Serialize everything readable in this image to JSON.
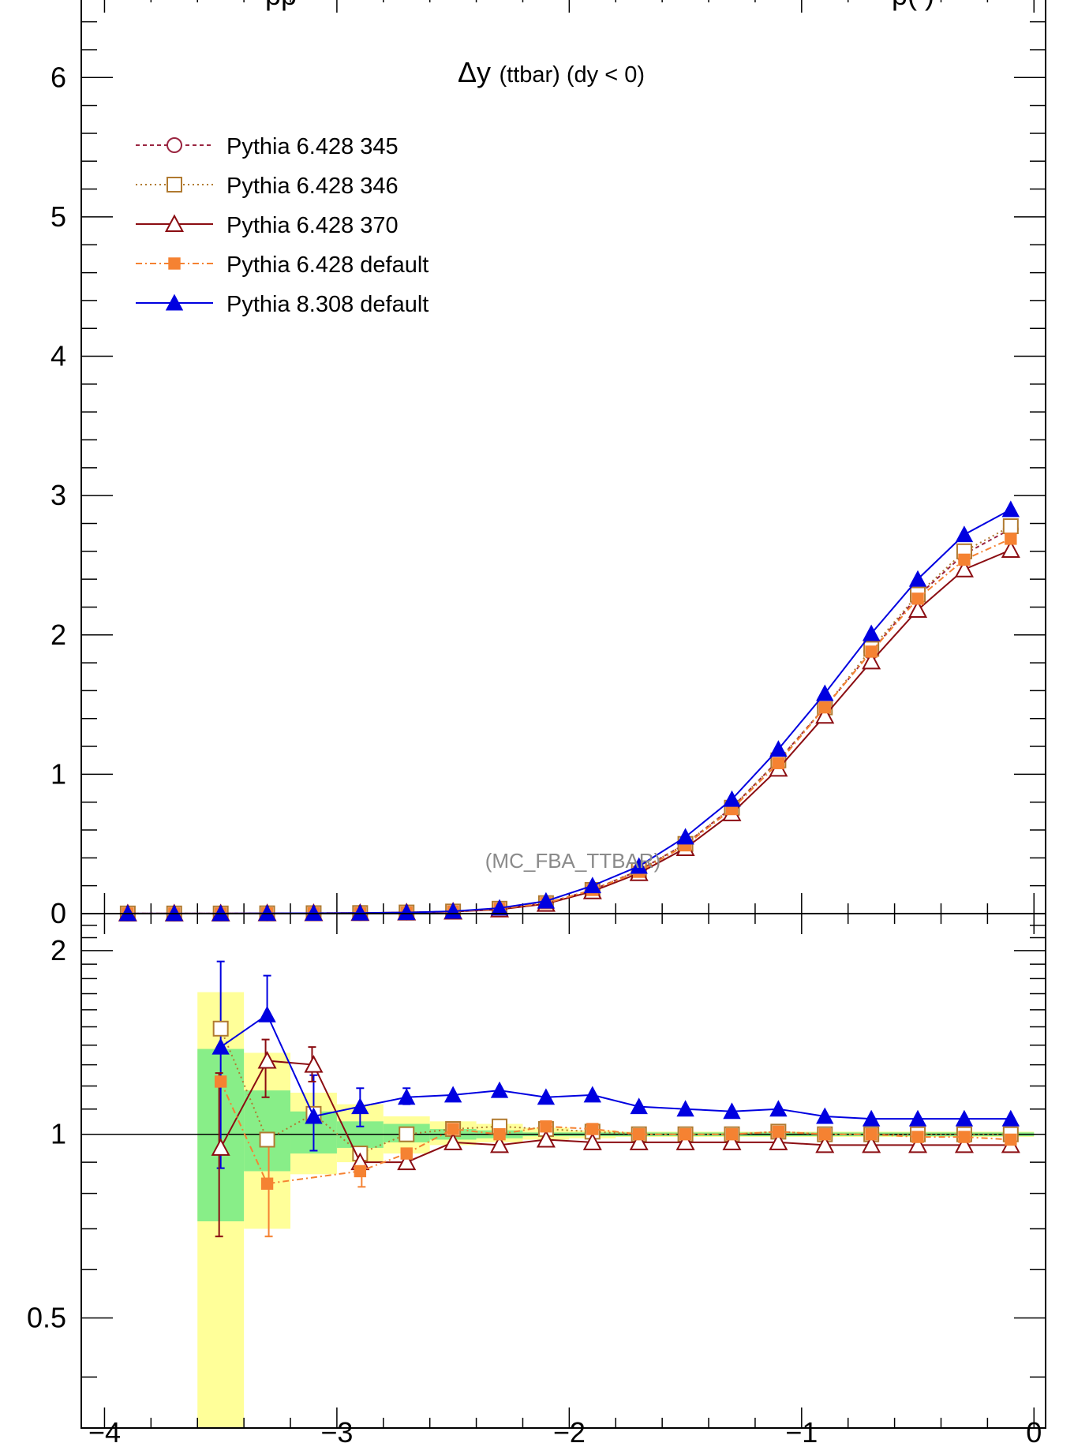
{
  "chart_data": {
    "type": "line",
    "title_fragment": "pp",
    "title_fragment_right": "p(                )",
    "panel_label_symbol": "Δy",
    "panel_label_text": "(ttbar) (dy < 0)",
    "watermark": "(MC_FBA_TTBAR)",
    "x": [
      -3.9,
      -3.7,
      -3.5,
      -3.3,
      -3.1,
      -2.9,
      -2.7,
      -2.5,
      -2.3,
      -2.1,
      -1.9,
      -1.7,
      -1.5,
      -1.3,
      -1.1,
      -0.9,
      -0.7,
      -0.5,
      -0.3,
      -0.1
    ],
    "xlim": [
      -4.1,
      0.05
    ],
    "main_ylim": [
      0,
      6.5
    ],
    "ratio_ylim": [
      0.33,
      2.3
    ],
    "main_yticks": [
      "0",
      "1",
      "2",
      "3",
      "4",
      "5",
      "6"
    ],
    "ratio_yticks": [
      "0.5",
      "1",
      "2"
    ],
    "xticks": [
      "−4",
      "−3",
      "−2",
      "−1",
      "0"
    ],
    "legend_position": "top-left",
    "series": [
      {
        "name": "Pythia 6.428 345",
        "color": "#9a2540",
        "dash": "5,4",
        "marker": "open-circle",
        "values": [
          0.001,
          0.001,
          0.001,
          0.002,
          0.003,
          0.004,
          0.008,
          0.015,
          0.035,
          0.075,
          0.17,
          0.31,
          0.5,
          0.76,
          1.1,
          1.48,
          1.88,
          2.28,
          2.58,
          2.76
        ],
        "ratio": [
          null,
          null,
          null,
          null,
          null,
          null,
          null,
          null,
          null,
          null,
          null,
          null,
          null,
          null,
          null,
          null,
          null,
          null,
          null,
          null
        ]
      },
      {
        "name": "Pythia 6.428 346",
        "color": "#b07a30",
        "dash": "2,4",
        "marker": "open-square",
        "values": [
          0.001,
          0.001,
          0.001,
          0.002,
          0.003,
          0.004,
          0.008,
          0.015,
          0.035,
          0.075,
          0.17,
          0.31,
          0.5,
          0.76,
          1.1,
          1.48,
          1.9,
          2.29,
          2.6,
          2.78
        ],
        "ratio": [
          null,
          null,
          1.49,
          0.98,
          1.08,
          0.93,
          1.0,
          1.02,
          1.03,
          1.02,
          1.01,
          1.0,
          1.0,
          1.0,
          1.01,
          1.0,
          1.0,
          1.0,
          1.0,
          1.0
        ]
      },
      {
        "name": "Pythia 6.428 370",
        "color": "#8b0d12",
        "dash": "",
        "marker": "open-triangle",
        "values": [
          0.001,
          0.001,
          0.001,
          0.002,
          0.003,
          0.004,
          0.008,
          0.014,
          0.03,
          0.07,
          0.16,
          0.29,
          0.47,
          0.72,
          1.04,
          1.42,
          1.81,
          2.18,
          2.47,
          2.61
        ],
        "ratio": [
          null,
          null,
          0.95,
          1.32,
          1.3,
          0.9,
          0.9,
          0.97,
          0.96,
          0.98,
          0.97,
          0.97,
          0.97,
          0.97,
          0.97,
          0.96,
          0.96,
          0.96,
          0.96,
          0.96
        ]
      },
      {
        "name": "Pythia 6.428 default",
        "color": "#f58232",
        "dash": "8,4,2,4",
        "marker": "filled-square",
        "values": [
          0.001,
          0.001,
          0.001,
          0.002,
          0.003,
          0.004,
          0.008,
          0.015,
          0.035,
          0.075,
          0.17,
          0.3,
          0.49,
          0.75,
          1.08,
          1.48,
          1.88,
          2.26,
          2.54,
          2.69
        ],
        "ratio": [
          null,
          null,
          1.22,
          0.83,
          null,
          0.87,
          0.93,
          1.02,
          1.0,
          1.03,
          1.02,
          1.0,
          1.0,
          1.0,
          1.01,
          1.0,
          1.0,
          0.99,
          0.99,
          0.98
        ]
      },
      {
        "name": "Pythia 8.308 default",
        "color": "#0000e0",
        "dash": "",
        "marker": "filled-triangle",
        "values": [
          0.001,
          0.001,
          0.001,
          0.002,
          0.003,
          0.004,
          0.008,
          0.017,
          0.04,
          0.09,
          0.2,
          0.34,
          0.55,
          0.82,
          1.18,
          1.58,
          2.01,
          2.4,
          2.72,
          2.9
        ],
        "ratio": [
          null,
          null,
          1.39,
          1.57,
          1.07,
          1.11,
          1.15,
          1.16,
          1.18,
          1.15,
          1.16,
          1.11,
          1.1,
          1.09,
          1.1,
          1.07,
          1.06,
          1.06,
          1.06,
          1.06
        ]
      }
    ],
    "ratio_errors": [
      {
        "series": 4,
        "x": -3.5,
        "lo": 0.88,
        "hi": 1.92
      },
      {
        "series": 4,
        "x": -3.3,
        "lo": null,
        "hi": 1.82
      },
      {
        "series": 4,
        "x": -3.1,
        "lo": 0.94,
        "hi": 1.25
      },
      {
        "series": 4,
        "x": -2.9,
        "lo": 1.03,
        "hi": 1.19
      },
      {
        "series": 4,
        "x": -2.7,
        "lo": 1.12,
        "hi": 1.19
      },
      {
        "series": 2,
        "x": -3.5,
        "lo": 0.68,
        "hi": 1.26
      },
      {
        "series": 2,
        "x": -3.3,
        "lo": 1.15,
        "hi": 1.43
      },
      {
        "series": 2,
        "x": -3.1,
        "lo": 1.22,
        "hi": 1.39
      },
      {
        "series": 3,
        "x": -3.3,
        "lo": 0.68,
        "hi": 0.98
      },
      {
        "series": 3,
        "x": -2.9,
        "lo": 0.82,
        "hi": 0.91
      }
    ],
    "bands": {
      "yellow": [
        {
          "x0": -3.6,
          "x1": -3.4,
          "lo": 0.33,
          "hi": 1.71
        },
        {
          "x0": -3.4,
          "x1": -3.2,
          "lo": 0.7,
          "hi": 1.36
        },
        {
          "x0": -3.2,
          "x1": -3.0,
          "lo": 0.86,
          "hi": 1.17
        },
        {
          "x0": -3.0,
          "x1": -2.8,
          "lo": 0.9,
          "hi": 1.12
        },
        {
          "x0": -2.8,
          "x1": -2.6,
          "lo": 0.93,
          "hi": 1.07
        },
        {
          "x0": -2.6,
          "x1": -2.4,
          "lo": 0.96,
          "hi": 1.05
        },
        {
          "x0": -2.4,
          "x1": -2.2,
          "lo": 0.97,
          "hi": 1.04
        },
        {
          "x0": -2.2,
          "x1": -2.0,
          "lo": 0.98,
          "hi": 1.025
        },
        {
          "x0": -2.0,
          "x1": -1.8,
          "lo": 0.985,
          "hi": 1.015
        },
        {
          "x0": -1.8,
          "x1": 0.0,
          "lo": 0.99,
          "hi": 1.01
        }
      ],
      "green": [
        {
          "x0": -3.6,
          "x1": -3.4,
          "lo": 0.72,
          "hi": 1.38
        },
        {
          "x0": -3.4,
          "x1": -3.2,
          "lo": 0.87,
          "hi": 1.18
        },
        {
          "x0": -3.2,
          "x1": -3.0,
          "lo": 0.93,
          "hi": 1.09
        },
        {
          "x0": -3.0,
          "x1": -2.8,
          "lo": 0.95,
          "hi": 1.05
        },
        {
          "x0": -2.8,
          "x1": -2.6,
          "lo": 0.97,
          "hi": 1.04
        },
        {
          "x0": -2.6,
          "x1": -2.4,
          "lo": 0.98,
          "hi": 1.02
        },
        {
          "x0": -2.4,
          "x1": -2.2,
          "lo": 0.985,
          "hi": 1.015
        },
        {
          "x0": -2.2,
          "x1": 0.0,
          "lo": 0.993,
          "hi": 1.007
        }
      ]
    }
  }
}
